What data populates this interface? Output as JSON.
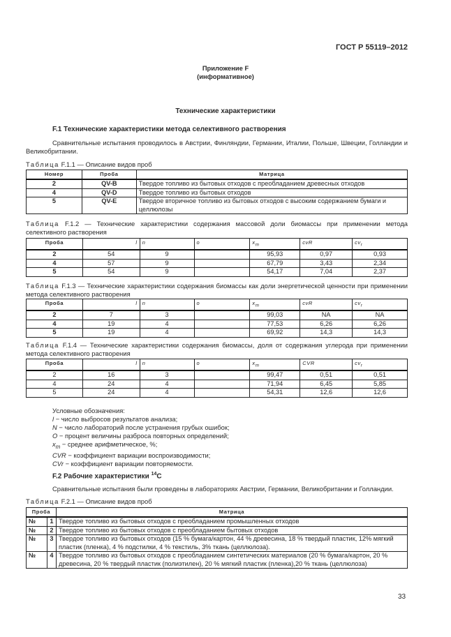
{
  "header": {
    "standard": "ГОСТ Р 55119–2012"
  },
  "appendix": {
    "title": "Приложение F",
    "subtitle": "(информативное)"
  },
  "section_title": "Технические характеристики",
  "f1": {
    "heading": "F.1 Технические характеристики метода селективного растворения",
    "paragraph": "Сравнительные испытания проводилось в Австрии, Финляндии, Германии, Италии, Польше, Швеции, Голландии и Великобритании.",
    "t11": {
      "caption_prefix": "Таблица",
      "caption": " F.1.1 — Описание видов проб",
      "headers": [
        "Номер",
        "Проба",
        "Матрица"
      ],
      "rows": [
        [
          "2",
          "QV-B",
          "Твердое топливо из бытовых отходов с преобладанием древесных отходов"
        ],
        [
          "4",
          "QV-D",
          "Твердое топливо из бытовых отходов"
        ],
        [
          "5",
          "QV-E",
          "Твердое вторичное топливо из бытовых отходов с высоким содержанием бумаги и целлюлозы"
        ]
      ]
    },
    "t12": {
      "caption_prefix": "Таблица",
      "caption": " F.1.2 — Технические характеристики содержания массовой доли биомассы при применении метода селективного растворения",
      "headers": [
        "Проба",
        "l",
        "n",
        "o",
        "xm",
        "cvR",
        "cvr"
      ],
      "rows": [
        [
          "2",
          "54",
          "9",
          "",
          "95,93",
          "0,97",
          "0,93"
        ],
        [
          "4",
          "57",
          "9",
          "",
          "67,79",
          "3,43",
          "2,34"
        ],
        [
          "5",
          "54",
          "9",
          "",
          "54,17",
          "7,04",
          "2,37"
        ]
      ]
    },
    "t13": {
      "caption_prefix": "Таблица",
      "caption": " F.1.3 — Технические характеристики содержания биомассы как доли энергетической ценности при применении метода селективного растворения",
      "headers": [
        "Проба",
        "l",
        "n",
        "o",
        "xm",
        "cvR",
        "cvr"
      ],
      "rows": [
        [
          "2",
          "7",
          "3",
          "",
          "99,03",
          "NA",
          "NA"
        ],
        [
          "4",
          "19",
          "4",
          "",
          "77,53",
          "6,26",
          "6,26"
        ],
        [
          "5",
          "19",
          "4",
          "",
          "69,92",
          "14,3",
          "14,3"
        ]
      ]
    },
    "t14": {
      "caption_prefix": "Таблица",
      "caption": " F.1.4 — Технические характеристики содержания биомассы, доля от содержания углерода при применении метода селективного растворения",
      "headers": [
        "Проба",
        "l",
        "n",
        "o",
        "xm",
        "CVR",
        "cvr"
      ],
      "rows": [
        [
          "2",
          "16",
          "3",
          "",
          "99,47",
          "0,51",
          "0,51"
        ],
        [
          "4",
          "24",
          "4",
          "",
          "71,94",
          "6,45",
          "5,85"
        ],
        [
          "5",
          "24",
          "4",
          "",
          "54,31",
          "12,6",
          "12,6"
        ]
      ]
    }
  },
  "legend": {
    "title": "Условные обозначения:",
    "items": [
      {
        "sym": "l",
        "text": " − число выбросов результатов анализа;"
      },
      {
        "sym": "N",
        "text": " − число лабораторий после устранения грубых ошибок;"
      },
      {
        "sym": "O",
        "text": " − процент величины разброса повторных определений;"
      },
      {
        "sym": "xm",
        "text": " − среднее арифметическое, %;"
      },
      {
        "sym": "CVR",
        "text": " − коэффициент вариации воспроизводимости;"
      },
      {
        "sym": "CVr",
        "text": " − коэффициент вариации повторяемости."
      }
    ]
  },
  "f2": {
    "heading": "F.2 Рабочие характеристики ",
    "heading_sup": "14",
    "heading_end": "C",
    "paragraph": "Сравнительные испытания были проведены в лабораториях Австрии, Германии, Великобритании и Голландии.",
    "t21": {
      "caption_prefix": "Таблица",
      "caption": " F.2.1 — Описание видов проб",
      "headers": [
        "Проба",
        "Матрица"
      ],
      "rows": [
        [
          "№",
          "1",
          "Твердое топливо из бытовых отходов с преобладанием промышленных отходов"
        ],
        [
          "№",
          "2",
          "Твердое топливо из бытовых отходов с преобладанием бытовых отходов"
        ],
        [
          "№",
          "3",
          "Твердое топливо из бытовых отходов (15 % бумага/картон, 44 % древесина, 18 % твердый пластик, 12% мягкий пластик (пленка), 4 % подстилки, 4 % текстиль, 3% ткань (целлюлоза)."
        ],
        [
          "№",
          "4",
          "Твердое топливо из бытовых отходов с преобладанием синтетических материалов (20 % бумага/картон, 20 % древесина, 20 % твердый пластик (полиэтилен), 20 % мягкий пластик (пленка),20 % ткань (целлюлоза)"
        ]
      ]
    }
  },
  "page_number": "33"
}
